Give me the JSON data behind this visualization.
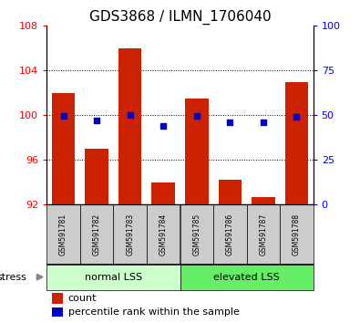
{
  "title": "GDS3868 / ILMN_1706040",
  "categories": [
    "GSM591781",
    "GSM591782",
    "GSM591783",
    "GSM591784",
    "GSM591785",
    "GSM591786",
    "GSM591787",
    "GSM591788"
  ],
  "red_values": [
    102.0,
    97.0,
    106.0,
    94.0,
    101.5,
    94.2,
    92.7,
    103.0
  ],
  "blue_values": [
    49.5,
    47.0,
    50.0,
    44.0,
    49.5,
    46.0,
    46.0,
    49.0
  ],
  "ylim_left": [
    92,
    108
  ],
  "ylim_right": [
    0,
    100
  ],
  "yticks_left": [
    92,
    96,
    100,
    104,
    108
  ],
  "yticks_right": [
    0,
    25,
    50,
    75,
    100
  ],
  "groups": [
    {
      "label": "normal LSS",
      "start": 0,
      "end": 3,
      "color": "#ccffcc"
    },
    {
      "label": "elevated LSS",
      "start": 4,
      "end": 7,
      "color": "#66ee66"
    }
  ],
  "stress_label": "stress",
  "bar_color": "#cc2200",
  "dot_color": "#0000cc",
  "background_color": "#ffffff",
  "bar_width": 0.7,
  "title_fontsize": 11,
  "legend_items": [
    {
      "label": "count",
      "color": "#cc2200"
    },
    {
      "label": "percentile rank within the sample",
      "color": "#0000cc"
    }
  ]
}
